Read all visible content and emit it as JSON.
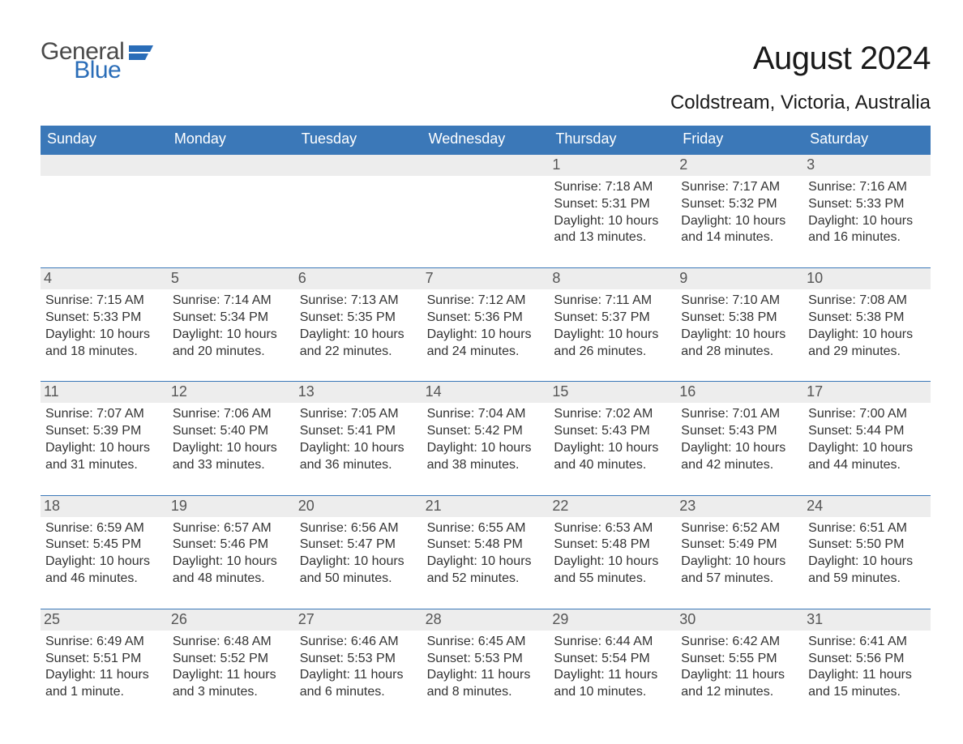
{
  "logo": {
    "general": "General",
    "blue": "Blue",
    "flag_color": "#2a6db8"
  },
  "title": "August 2024",
  "location": "Coldstream, Victoria, Australia",
  "colors": {
    "header_bg": "#3b78b8",
    "header_text": "#ffffff",
    "band_bg": "#ededed",
    "band_text": "#555555",
    "body_text": "#333333",
    "row_border": "#3b78b8",
    "page_bg": "#ffffff"
  },
  "typography": {
    "title_fontsize": 40,
    "location_fontsize": 24,
    "day_header_fontsize": 18,
    "day_number_fontsize": 18,
    "detail_fontsize": 16,
    "font_family": "Arial"
  },
  "day_headers": [
    "Sunday",
    "Monday",
    "Tuesday",
    "Wednesday",
    "Thursday",
    "Friday",
    "Saturday"
  ],
  "weeks": [
    [
      null,
      null,
      null,
      null,
      {
        "day": "1",
        "sunrise": "Sunrise: 7:18 AM",
        "sunset": "Sunset: 5:31 PM",
        "daylight": "Daylight: 10 hours and 13 minutes."
      },
      {
        "day": "2",
        "sunrise": "Sunrise: 7:17 AM",
        "sunset": "Sunset: 5:32 PM",
        "daylight": "Daylight: 10 hours and 14 minutes."
      },
      {
        "day": "3",
        "sunrise": "Sunrise: 7:16 AM",
        "sunset": "Sunset: 5:33 PM",
        "daylight": "Daylight: 10 hours and 16 minutes."
      }
    ],
    [
      {
        "day": "4",
        "sunrise": "Sunrise: 7:15 AM",
        "sunset": "Sunset: 5:33 PM",
        "daylight": "Daylight: 10 hours and 18 minutes."
      },
      {
        "day": "5",
        "sunrise": "Sunrise: 7:14 AM",
        "sunset": "Sunset: 5:34 PM",
        "daylight": "Daylight: 10 hours and 20 minutes."
      },
      {
        "day": "6",
        "sunrise": "Sunrise: 7:13 AM",
        "sunset": "Sunset: 5:35 PM",
        "daylight": "Daylight: 10 hours and 22 minutes."
      },
      {
        "day": "7",
        "sunrise": "Sunrise: 7:12 AM",
        "sunset": "Sunset: 5:36 PM",
        "daylight": "Daylight: 10 hours and 24 minutes."
      },
      {
        "day": "8",
        "sunrise": "Sunrise: 7:11 AM",
        "sunset": "Sunset: 5:37 PM",
        "daylight": "Daylight: 10 hours and 26 minutes."
      },
      {
        "day": "9",
        "sunrise": "Sunrise: 7:10 AM",
        "sunset": "Sunset: 5:38 PM",
        "daylight": "Daylight: 10 hours and 28 minutes."
      },
      {
        "day": "10",
        "sunrise": "Sunrise: 7:08 AM",
        "sunset": "Sunset: 5:38 PM",
        "daylight": "Daylight: 10 hours and 29 minutes."
      }
    ],
    [
      {
        "day": "11",
        "sunrise": "Sunrise: 7:07 AM",
        "sunset": "Sunset: 5:39 PM",
        "daylight": "Daylight: 10 hours and 31 minutes."
      },
      {
        "day": "12",
        "sunrise": "Sunrise: 7:06 AM",
        "sunset": "Sunset: 5:40 PM",
        "daylight": "Daylight: 10 hours and 33 minutes."
      },
      {
        "day": "13",
        "sunrise": "Sunrise: 7:05 AM",
        "sunset": "Sunset: 5:41 PM",
        "daylight": "Daylight: 10 hours and 36 minutes."
      },
      {
        "day": "14",
        "sunrise": "Sunrise: 7:04 AM",
        "sunset": "Sunset: 5:42 PM",
        "daylight": "Daylight: 10 hours and 38 minutes."
      },
      {
        "day": "15",
        "sunrise": "Sunrise: 7:02 AM",
        "sunset": "Sunset: 5:43 PM",
        "daylight": "Daylight: 10 hours and 40 minutes."
      },
      {
        "day": "16",
        "sunrise": "Sunrise: 7:01 AM",
        "sunset": "Sunset: 5:43 PM",
        "daylight": "Daylight: 10 hours and 42 minutes."
      },
      {
        "day": "17",
        "sunrise": "Sunrise: 7:00 AM",
        "sunset": "Sunset: 5:44 PM",
        "daylight": "Daylight: 10 hours and 44 minutes."
      }
    ],
    [
      {
        "day": "18",
        "sunrise": "Sunrise: 6:59 AM",
        "sunset": "Sunset: 5:45 PM",
        "daylight": "Daylight: 10 hours and 46 minutes."
      },
      {
        "day": "19",
        "sunrise": "Sunrise: 6:57 AM",
        "sunset": "Sunset: 5:46 PM",
        "daylight": "Daylight: 10 hours and 48 minutes."
      },
      {
        "day": "20",
        "sunrise": "Sunrise: 6:56 AM",
        "sunset": "Sunset: 5:47 PM",
        "daylight": "Daylight: 10 hours and 50 minutes."
      },
      {
        "day": "21",
        "sunrise": "Sunrise: 6:55 AM",
        "sunset": "Sunset: 5:48 PM",
        "daylight": "Daylight: 10 hours and 52 minutes."
      },
      {
        "day": "22",
        "sunrise": "Sunrise: 6:53 AM",
        "sunset": "Sunset: 5:48 PM",
        "daylight": "Daylight: 10 hours and 55 minutes."
      },
      {
        "day": "23",
        "sunrise": "Sunrise: 6:52 AM",
        "sunset": "Sunset: 5:49 PM",
        "daylight": "Daylight: 10 hours and 57 minutes."
      },
      {
        "day": "24",
        "sunrise": "Sunrise: 6:51 AM",
        "sunset": "Sunset: 5:50 PM",
        "daylight": "Daylight: 10 hours and 59 minutes."
      }
    ],
    [
      {
        "day": "25",
        "sunrise": "Sunrise: 6:49 AM",
        "sunset": "Sunset: 5:51 PM",
        "daylight": "Daylight: 11 hours and 1 minute."
      },
      {
        "day": "26",
        "sunrise": "Sunrise: 6:48 AM",
        "sunset": "Sunset: 5:52 PM",
        "daylight": "Daylight: 11 hours and 3 minutes."
      },
      {
        "day": "27",
        "sunrise": "Sunrise: 6:46 AM",
        "sunset": "Sunset: 5:53 PM",
        "daylight": "Daylight: 11 hours and 6 minutes."
      },
      {
        "day": "28",
        "sunrise": "Sunrise: 6:45 AM",
        "sunset": "Sunset: 5:53 PM",
        "daylight": "Daylight: 11 hours and 8 minutes."
      },
      {
        "day": "29",
        "sunrise": "Sunrise: 6:44 AM",
        "sunset": "Sunset: 5:54 PM",
        "daylight": "Daylight: 11 hours and 10 minutes."
      },
      {
        "day": "30",
        "sunrise": "Sunrise: 6:42 AM",
        "sunset": "Sunset: 5:55 PM",
        "daylight": "Daylight: 11 hours and 12 minutes."
      },
      {
        "day": "31",
        "sunrise": "Sunrise: 6:41 AM",
        "sunset": "Sunset: 5:56 PM",
        "daylight": "Daylight: 11 hours and 15 minutes."
      }
    ]
  ]
}
